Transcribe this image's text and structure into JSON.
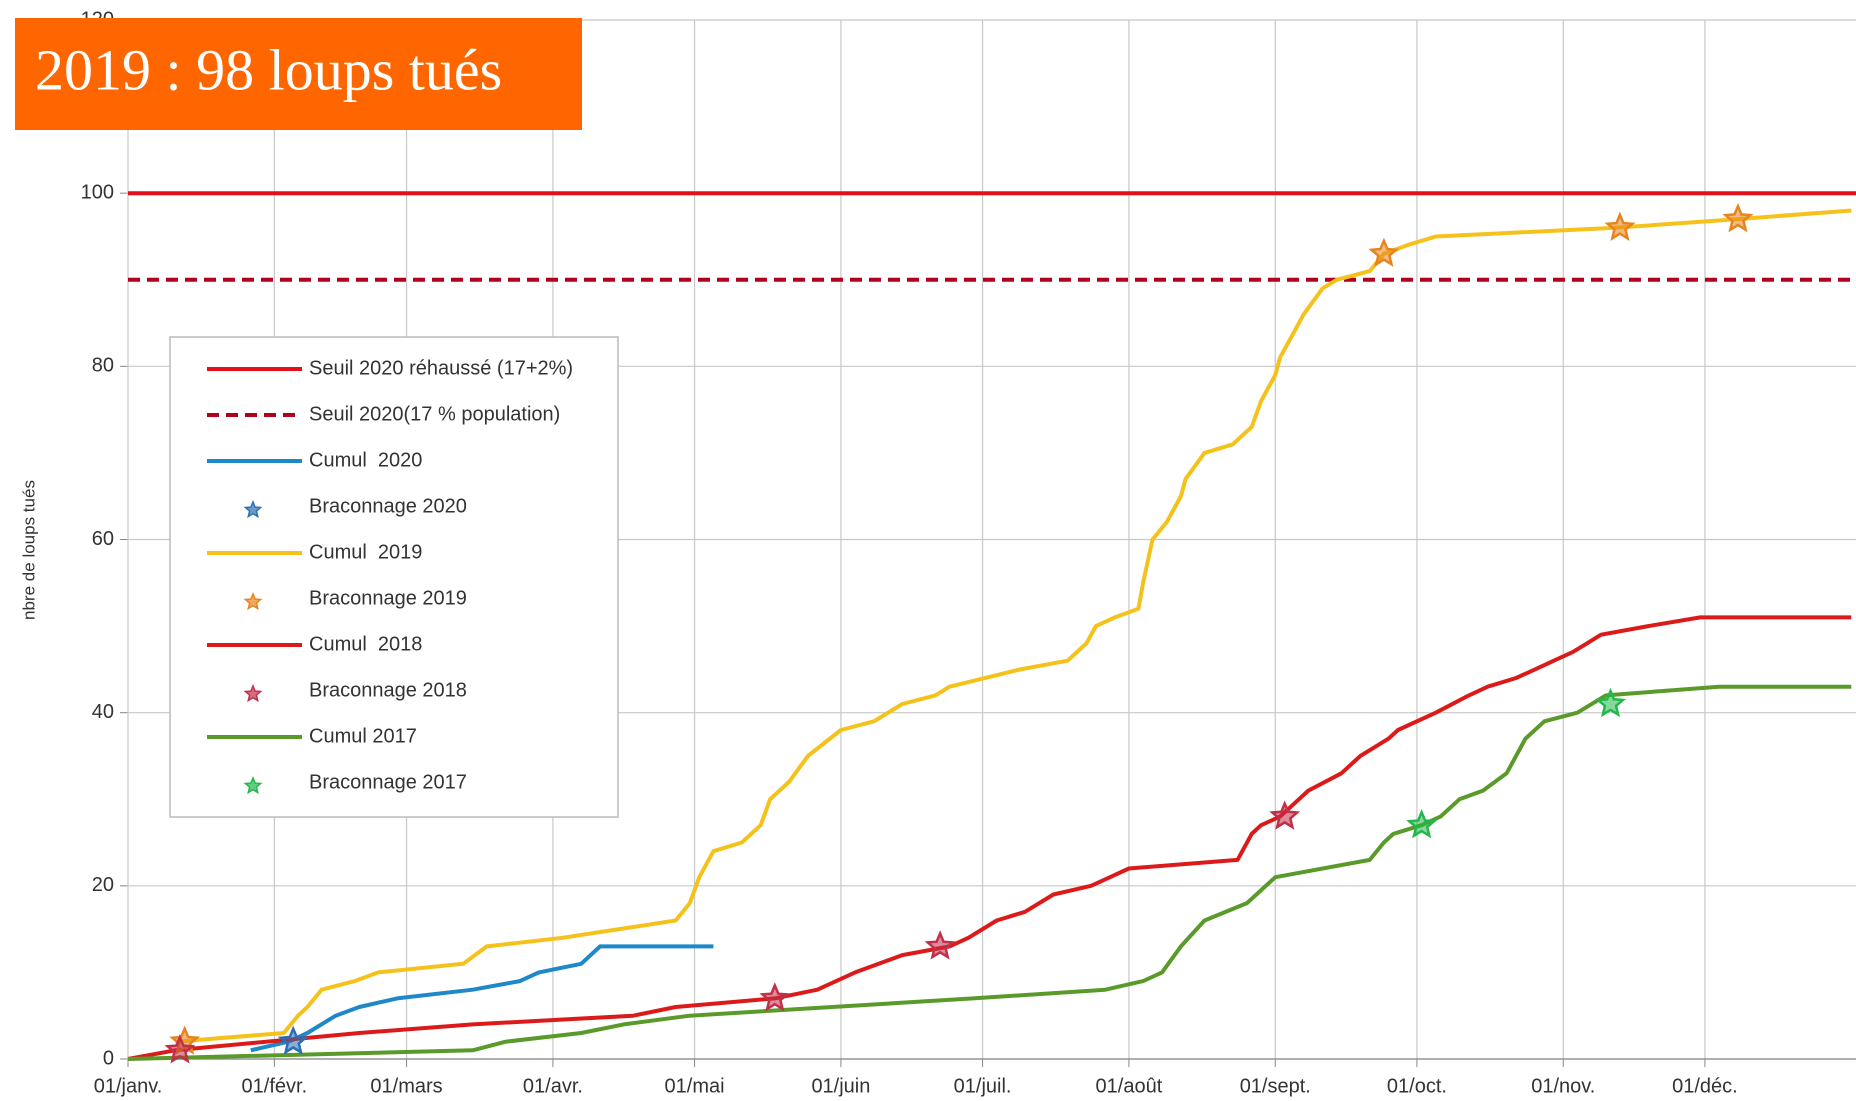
{
  "chart_data": {
    "type": "line",
    "annotation": "2019 : 98 loups tués",
    "y_label": "nbre de loups tués",
    "xlim": [
      0,
      366
    ],
    "xticks": [
      {
        "value": 0,
        "label": "01/janv."
      },
      {
        "value": 31,
        "label": "01/févr."
      },
      {
        "value": 59,
        "label": "01/mars"
      },
      {
        "value": 90,
        "label": "01/avr."
      },
      {
        "value": 120,
        "label": "01/mai"
      },
      {
        "value": 151,
        "label": "01/juin"
      },
      {
        "value": 181,
        "label": "01/juil."
      },
      {
        "value": 212,
        "label": "01/août"
      },
      {
        "value": 243,
        "label": "01/sept."
      },
      {
        "value": 273,
        "label": "01/oct."
      },
      {
        "value": 304,
        "label": "01/nov."
      },
      {
        "value": 334,
        "label": "01/déc."
      }
    ],
    "ylim": [
      0,
      120
    ],
    "yticks": [
      0,
      20,
      40,
      60,
      80,
      100,
      120
    ],
    "grid": true,
    "series": [
      {
        "name": "Seuil 2020 réhaussé (17+2%)",
        "kind": "line",
        "color": "#e3101a",
        "dashed": false,
        "x": [
          0,
          366
        ],
        "values": [
          100,
          100
        ]
      },
      {
        "name": "Seuil 2020(17 % population)",
        "kind": "line",
        "color": "#b0001e",
        "dashed": true,
        "x": [
          0,
          366
        ],
        "values": [
          90,
          90
        ]
      },
      {
        "name": "Cumul  2020",
        "kind": "line",
        "color": "#1e88c8",
        "dashed": false,
        "x": [
          26,
          34,
          38,
          44,
          49,
          57,
          73,
          83,
          87,
          96,
          100,
          124
        ],
        "values": [
          1,
          2,
          3,
          5,
          6,
          7,
          8,
          9,
          10,
          11,
          13,
          13
        ]
      },
      {
        "name": "Braconnage 2020",
        "kind": "scatter",
        "color": "#2a6fb5",
        "x": [
          35
        ],
        "values": [
          2
        ]
      },
      {
        "name": "Cumul  2019",
        "kind": "line",
        "color": "#f5c21b",
        "dashed": false,
        "x": [
          10,
          33,
          36,
          38,
          41,
          48,
          53,
          71,
          76,
          92,
          116,
          119,
          121,
          124,
          130,
          134,
          136,
          140,
          144,
          151,
          158,
          164,
          171,
          174,
          189,
          199,
          203,
          205,
          209,
          214,
          215,
          217,
          220,
          223,
          224,
          228,
          234,
          238,
          240,
          243,
          244,
          247,
          249,
          253,
          256,
          263,
          266,
          271,
          277,
          315,
          341,
          365
        ],
        "values": [
          2,
          3,
          5,
          6,
          8,
          9,
          10,
          11,
          13,
          14,
          16,
          18,
          21,
          24,
          25,
          27,
          30,
          32,
          35,
          38,
          39,
          41,
          42,
          43,
          45,
          46,
          48,
          50,
          51,
          52,
          55,
          60,
          62,
          65,
          67,
          70,
          71,
          73,
          76,
          79,
          81,
          84,
          86,
          89,
          90,
          91,
          93,
          94,
          95,
          96,
          97,
          98
        ]
      },
      {
        "name": "Braconnage 2019",
        "kind": "scatter",
        "color": "#e8841e",
        "x": [
          12,
          266,
          316,
          341
        ],
        "values": [
          2,
          93,
          96,
          97
        ]
      },
      {
        "name": "Cumul  2018",
        "kind": "line",
        "color": "#dc1a1a",
        "dashed": false,
        "x": [
          0,
          10,
          49,
          73,
          107,
          116,
          137,
          146,
          150,
          154,
          159,
          164,
          174,
          178,
          184,
          190,
          196,
          204,
          208,
          212,
          235,
          238,
          240,
          244,
          248,
          250,
          257,
          261,
          264,
          267,
          269,
          277,
          284,
          288,
          294,
          298,
          302,
          306,
          309,
          312,
          322,
          333,
          365
        ],
        "values": [
          0,
          1,
          3,
          4,
          5,
          6,
          7,
          8,
          9,
          10,
          11,
          12,
          13,
          14,
          16,
          17,
          19,
          20,
          21,
          22,
          23,
          26,
          27,
          28,
          30,
          31,
          33,
          35,
          36,
          37,
          38,
          40,
          42,
          43,
          44,
          45,
          46,
          47,
          48,
          49,
          50,
          51,
          51
        ]
      },
      {
        "name": "Braconnage 2018",
        "kind": "scatter",
        "color": "#c0304a",
        "x": [
          11,
          137,
          172,
          245
        ],
        "values": [
          1,
          7,
          13,
          28
        ]
      },
      {
        "name": "Cumul 2017",
        "kind": "line",
        "color": "#5a9a2a",
        "dashed": false,
        "x": [
          0,
          73,
          80,
          96,
          105,
          119,
          179,
          207,
          215,
          219,
          223,
          228,
          237,
          239,
          243,
          263,
          266,
          268,
          274,
          278,
          282,
          287,
          292,
          296,
          300,
          307,
          313,
          337,
          365
        ],
        "values": [
          0,
          1,
          2,
          3,
          4,
          5,
          7,
          8,
          9,
          10,
          13,
          16,
          18,
          19,
          21,
          23,
          25,
          26,
          27,
          28,
          30,
          31,
          33,
          37,
          39,
          40,
          42,
          43,
          43
        ]
      },
      {
        "name": "Braconnage 2017",
        "kind": "scatter",
        "color": "#22b84a",
        "x": [
          274,
          314
        ],
        "values": [
          27,
          41
        ]
      }
    ]
  }
}
